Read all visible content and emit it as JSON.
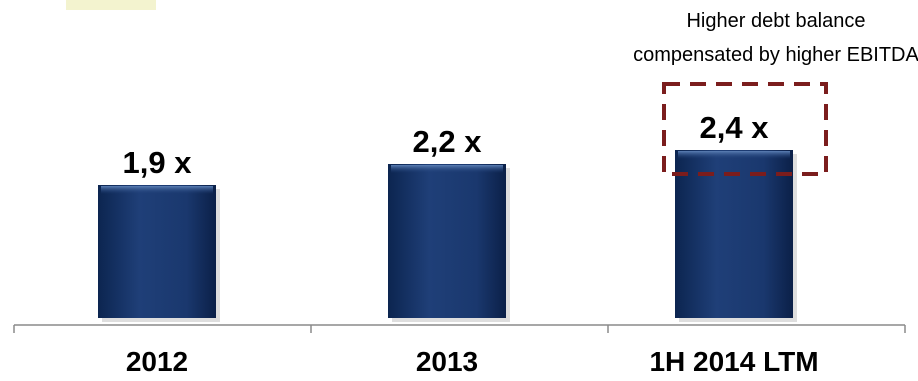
{
  "chart_data": {
    "type": "bar",
    "categories": [
      "2012",
      "2013",
      "1H 2014 LTM"
    ],
    "values": [
      1.9,
      2.2,
      2.4
    ],
    "value_labels": [
      "1,9 x",
      "2,2 x",
      "2,4 x"
    ],
    "title": "",
    "xlabel": "",
    "ylabel": "",
    "ylim": [
      0,
      2.9
    ],
    "grid": false,
    "bar_color": "#1f3f78",
    "highlight": {
      "category_index": 2,
      "border_color": "#7b1d1d",
      "lines": [
        "Higher debt balance",
        "compensated by higher EBITDA"
      ]
    }
  }
}
